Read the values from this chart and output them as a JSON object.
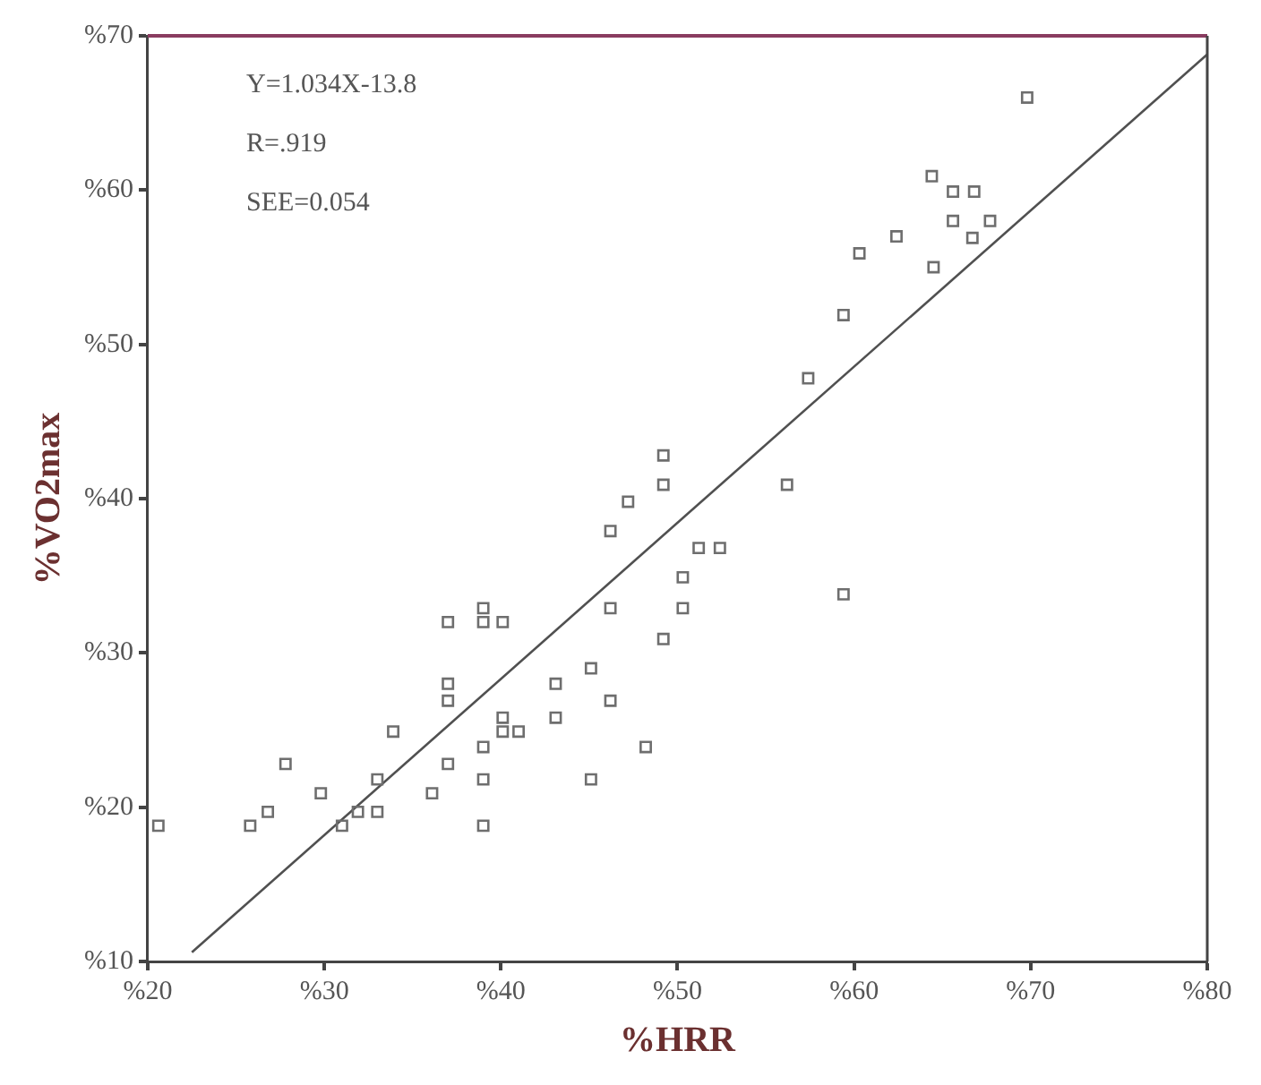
{
  "chart_data": {
    "type": "scatter",
    "xlabel": "%HRR",
    "ylabel": "%VO2max",
    "xlim": [
      20,
      80
    ],
    "ylim": [
      10,
      70
    ],
    "xticks": [
      {
        "value": 20,
        "label": "%20"
      },
      {
        "value": 30,
        "label": "%30"
      },
      {
        "value": 40,
        "label": "%40"
      },
      {
        "value": 50,
        "label": "%50"
      },
      {
        "value": 60,
        "label": "%60"
      },
      {
        "value": 70,
        "label": "%70"
      },
      {
        "value": 80,
        "label": "%80"
      }
    ],
    "yticks": [
      {
        "value": 10,
        "label": "%10"
      },
      {
        "value": 20,
        "label": "%20"
      },
      {
        "value": 30,
        "label": "%30"
      },
      {
        "value": 40,
        "label": "%40"
      },
      {
        "value": 50,
        "label": "%50"
      },
      {
        "value": 60,
        "label": "%60"
      },
      {
        "value": 70,
        "label": "%70"
      }
    ],
    "annotations": [
      "Y=1.034X-13.8",
      "R=.919",
      "SEE=0.054"
    ],
    "grid": false,
    "legend": false,
    "marker": "square",
    "series": [
      {
        "type": "scatter",
        "color": "#6e6e6e",
        "x": [
          20.6,
          25.8,
          26.8,
          27.8,
          29.8,
          31,
          31.9,
          33,
          33,
          33.9,
          36.1,
          37,
          37,
          37,
          37,
          39,
          39,
          39,
          39,
          39,
          40.1,
          40.1,
          40.1,
          41,
          43.1,
          43.1,
          45.1,
          45.1,
          46.2,
          46.2,
          46.2,
          47.2,
          48.2,
          49.2,
          49.2,
          49.2,
          50.3,
          50.3,
          51.2,
          52.4,
          56.2,
          59.4,
          59.4,
          57.4,
          60.3,
          62.4,
          64.5,
          64.4,
          65.6,
          66.8,
          65.6,
          66.7,
          67.7,
          69.8
        ],
        "values": [
          18.8,
          18.8,
          19.7,
          22.8,
          20.9,
          18.8,
          19.7,
          19.7,
          21.8,
          24.9,
          20.9,
          22.8,
          26.9,
          28,
          32,
          18.8,
          21.8,
          23.9,
          32,
          32.9,
          25.8,
          24.9,
          32,
          24.9,
          25.8,
          28,
          21.8,
          29,
          26.9,
          32.9,
          37.9,
          39.8,
          23.9,
          30.9,
          40.9,
          42.8,
          32.9,
          34.9,
          36.8,
          36.8,
          40.9,
          33.8,
          51.9,
          47.8,
          55.9,
          57,
          55,
          60.9,
          59.9,
          59.9,
          58,
          56.9,
          58,
          66
        ]
      },
      {
        "type": "line",
        "color": "#505050",
        "marker": "none",
        "line_style": "solid",
        "x": [
          22.5,
          80
        ],
        "values": [
          10.6,
          68.8
        ]
      }
    ]
  }
}
